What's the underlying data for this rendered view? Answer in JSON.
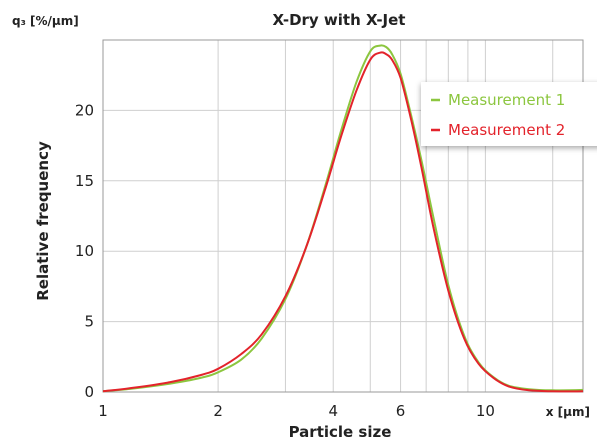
{
  "chart_data": {
    "type": "line",
    "title": "X-Dry with X-Jet",
    "y_unit_label": "q₃ [%/μm]",
    "x_unit_label": "x [μm]",
    "xlabel": "Particle size",
    "ylabel": "Relative frequency",
    "x_scale": "log",
    "xlim": [
      1,
      18
    ],
    "ylim": [
      0,
      25
    ],
    "x_ticks": [
      {
        "value": 1,
        "label": "1"
      },
      {
        "value": 2,
        "label": "2"
      },
      {
        "value": 4,
        "label": "4"
      },
      {
        "value": 6,
        "label": "6"
      },
      {
        "value": 10,
        "label": "10"
      }
    ],
    "y_ticks": [
      {
        "value": 0,
        "label": "0"
      },
      {
        "value": 5,
        "label": "5"
      },
      {
        "value": 10,
        "label": "10"
      },
      {
        "value": 15,
        "label": "15"
      },
      {
        "value": 20,
        "label": "20"
      }
    ],
    "x_minor_gridlines": [
      1,
      2,
      3,
      4,
      5,
      6,
      7,
      8,
      9,
      10,
      15
    ],
    "grid": true,
    "legend_position": "top-right",
    "series": [
      {
        "name": "Measurement 1",
        "color": "#8cc63f",
        "x": [
          1,
          1.2,
          1.5,
          1.8,
          2,
          2.3,
          2.6,
          3,
          3.4,
          3.8,
          4.2,
          4.6,
          5,
          5.3,
          5.5,
          5.7,
          6,
          6.4,
          6.8,
          7.3,
          8,
          8.8,
          9.6,
          10.5,
          11.5,
          13,
          15,
          18
        ],
        "y": [
          0.05,
          0.25,
          0.6,
          1.0,
          1.4,
          2.3,
          3.8,
          6.6,
          10.3,
          14.5,
          18.6,
          22.0,
          24.2,
          24.6,
          24.5,
          24.0,
          22.6,
          19.6,
          16.5,
          12.5,
          7.6,
          4.0,
          2.1,
          1.05,
          0.45,
          0.2,
          0.12,
          0.15
        ]
      },
      {
        "name": "Measurement 2",
        "color": "#e3232b",
        "x": [
          1,
          1.2,
          1.5,
          1.8,
          2,
          2.3,
          2.6,
          3,
          3.4,
          3.8,
          4.2,
          4.6,
          5,
          5.3,
          5.5,
          5.7,
          6,
          6.4,
          6.8,
          7.3,
          8,
          8.8,
          9.6,
          10.5,
          11.5,
          13,
          15,
          18
        ],
        "y": [
          0.05,
          0.3,
          0.7,
          1.2,
          1.65,
          2.7,
          4.1,
          6.8,
          10.3,
          14.3,
          18.2,
          21.4,
          23.6,
          24.1,
          24.0,
          23.6,
          22.3,
          19.3,
          16.0,
          11.8,
          7.2,
          3.8,
          2.0,
          1.0,
          0.4,
          0.12,
          0.05,
          0.05
        ]
      }
    ]
  }
}
